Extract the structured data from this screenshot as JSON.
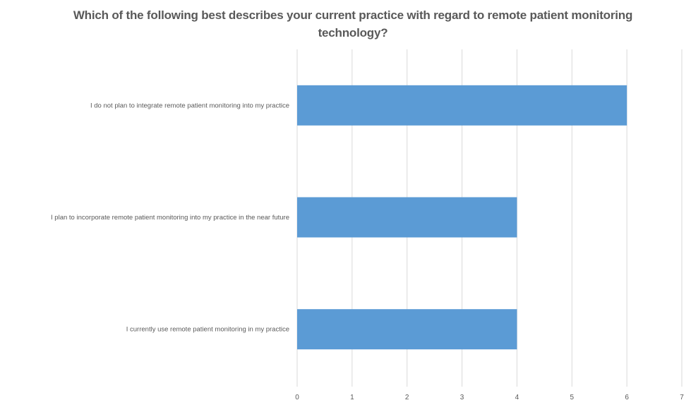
{
  "chart_data": {
    "type": "bar",
    "orientation": "horizontal",
    "title": "Which of the following best describes your current practice with regard to remote patient monitoring technology?",
    "categories": [
      "I do not plan to integrate remote patient monitoring into my practice",
      "I plan to incorporate remote patient monitoring into my practice in the near future",
      "I currently use remote patient monitoring in my practice"
    ],
    "values": [
      6,
      4,
      4
    ],
    "xlabel": "",
    "ylabel": "",
    "xlim": [
      0,
      7
    ],
    "ticks": [
      "0",
      "1",
      "2",
      "3",
      "4",
      "5",
      "6",
      "7"
    ],
    "grid": "vertical",
    "legend": "none",
    "bar_color": "#5B9BD5",
    "grid_color": "#D9D9D9"
  }
}
